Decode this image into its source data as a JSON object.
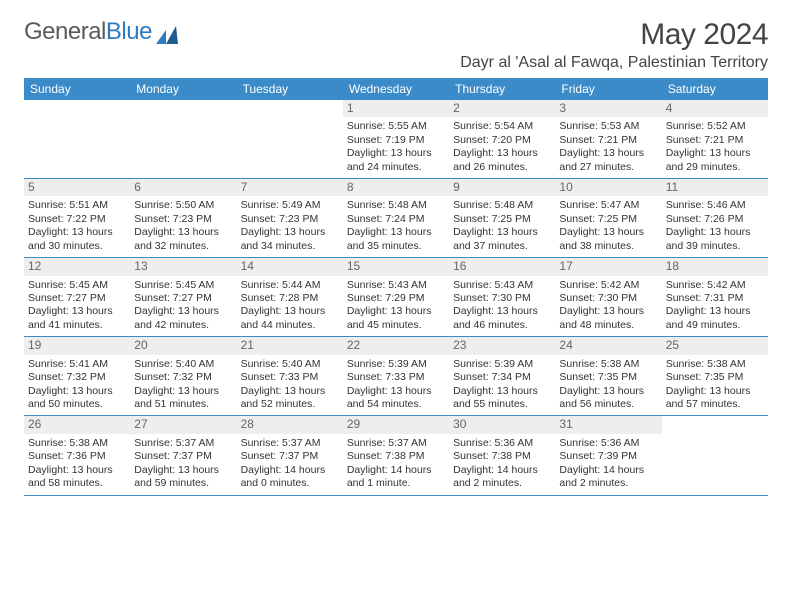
{
  "logo": {
    "part1": "General",
    "part2": "Blue"
  },
  "title": "May 2024",
  "subtitle": "Dayr al 'Asal al Fawqa, Palestinian Territory",
  "colors": {
    "header_bg": "#3b8bc9",
    "header_text": "#ffffff",
    "daynum_bg": "#eeeeee",
    "border": "#3b8bc9",
    "body_text": "#333333",
    "logo_gray": "#5a5a5a",
    "logo_blue": "#2f7bbf"
  },
  "day_headers": [
    "Sunday",
    "Monday",
    "Tuesday",
    "Wednesday",
    "Thursday",
    "Friday",
    "Saturday"
  ],
  "weeks": [
    [
      {
        "empty": true
      },
      {
        "empty": true
      },
      {
        "empty": true
      },
      {
        "num": "1",
        "sunrise": "5:55 AM",
        "sunset": "7:19 PM",
        "daylight": "13 hours and 24 minutes."
      },
      {
        "num": "2",
        "sunrise": "5:54 AM",
        "sunset": "7:20 PM",
        "daylight": "13 hours and 26 minutes."
      },
      {
        "num": "3",
        "sunrise": "5:53 AM",
        "sunset": "7:21 PM",
        "daylight": "13 hours and 27 minutes."
      },
      {
        "num": "4",
        "sunrise": "5:52 AM",
        "sunset": "7:21 PM",
        "daylight": "13 hours and 29 minutes."
      }
    ],
    [
      {
        "num": "5",
        "sunrise": "5:51 AM",
        "sunset": "7:22 PM",
        "daylight": "13 hours and 30 minutes."
      },
      {
        "num": "6",
        "sunrise": "5:50 AM",
        "sunset": "7:23 PM",
        "daylight": "13 hours and 32 minutes."
      },
      {
        "num": "7",
        "sunrise": "5:49 AM",
        "sunset": "7:23 PM",
        "daylight": "13 hours and 34 minutes."
      },
      {
        "num": "8",
        "sunrise": "5:48 AM",
        "sunset": "7:24 PM",
        "daylight": "13 hours and 35 minutes."
      },
      {
        "num": "9",
        "sunrise": "5:48 AM",
        "sunset": "7:25 PM",
        "daylight": "13 hours and 37 minutes."
      },
      {
        "num": "10",
        "sunrise": "5:47 AM",
        "sunset": "7:25 PM",
        "daylight": "13 hours and 38 minutes."
      },
      {
        "num": "11",
        "sunrise": "5:46 AM",
        "sunset": "7:26 PM",
        "daylight": "13 hours and 39 minutes."
      }
    ],
    [
      {
        "num": "12",
        "sunrise": "5:45 AM",
        "sunset": "7:27 PM",
        "daylight": "13 hours and 41 minutes."
      },
      {
        "num": "13",
        "sunrise": "5:45 AM",
        "sunset": "7:27 PM",
        "daylight": "13 hours and 42 minutes."
      },
      {
        "num": "14",
        "sunrise": "5:44 AM",
        "sunset": "7:28 PM",
        "daylight": "13 hours and 44 minutes."
      },
      {
        "num": "15",
        "sunrise": "5:43 AM",
        "sunset": "7:29 PM",
        "daylight": "13 hours and 45 minutes."
      },
      {
        "num": "16",
        "sunrise": "5:43 AM",
        "sunset": "7:30 PM",
        "daylight": "13 hours and 46 minutes."
      },
      {
        "num": "17",
        "sunrise": "5:42 AM",
        "sunset": "7:30 PM",
        "daylight": "13 hours and 48 minutes."
      },
      {
        "num": "18",
        "sunrise": "5:42 AM",
        "sunset": "7:31 PM",
        "daylight": "13 hours and 49 minutes."
      }
    ],
    [
      {
        "num": "19",
        "sunrise": "5:41 AM",
        "sunset": "7:32 PM",
        "daylight": "13 hours and 50 minutes."
      },
      {
        "num": "20",
        "sunrise": "5:40 AM",
        "sunset": "7:32 PM",
        "daylight": "13 hours and 51 minutes."
      },
      {
        "num": "21",
        "sunrise": "5:40 AM",
        "sunset": "7:33 PM",
        "daylight": "13 hours and 52 minutes."
      },
      {
        "num": "22",
        "sunrise": "5:39 AM",
        "sunset": "7:33 PM",
        "daylight": "13 hours and 54 minutes."
      },
      {
        "num": "23",
        "sunrise": "5:39 AM",
        "sunset": "7:34 PM",
        "daylight": "13 hours and 55 minutes."
      },
      {
        "num": "24",
        "sunrise": "5:38 AM",
        "sunset": "7:35 PM",
        "daylight": "13 hours and 56 minutes."
      },
      {
        "num": "25",
        "sunrise": "5:38 AM",
        "sunset": "7:35 PM",
        "daylight": "13 hours and 57 minutes."
      }
    ],
    [
      {
        "num": "26",
        "sunrise": "5:38 AM",
        "sunset": "7:36 PM",
        "daylight": "13 hours and 58 minutes."
      },
      {
        "num": "27",
        "sunrise": "5:37 AM",
        "sunset": "7:37 PM",
        "daylight": "13 hours and 59 minutes."
      },
      {
        "num": "28",
        "sunrise": "5:37 AM",
        "sunset": "7:37 PM",
        "daylight": "14 hours and 0 minutes."
      },
      {
        "num": "29",
        "sunrise": "5:37 AM",
        "sunset": "7:38 PM",
        "daylight": "14 hours and 1 minute."
      },
      {
        "num": "30",
        "sunrise": "5:36 AM",
        "sunset": "7:38 PM",
        "daylight": "14 hours and 2 minutes."
      },
      {
        "num": "31",
        "sunrise": "5:36 AM",
        "sunset": "7:39 PM",
        "daylight": "14 hours and 2 minutes."
      },
      {
        "empty": true
      }
    ]
  ],
  "labels": {
    "sunrise": "Sunrise: ",
    "sunset": "Sunset: ",
    "daylight": "Daylight: "
  }
}
